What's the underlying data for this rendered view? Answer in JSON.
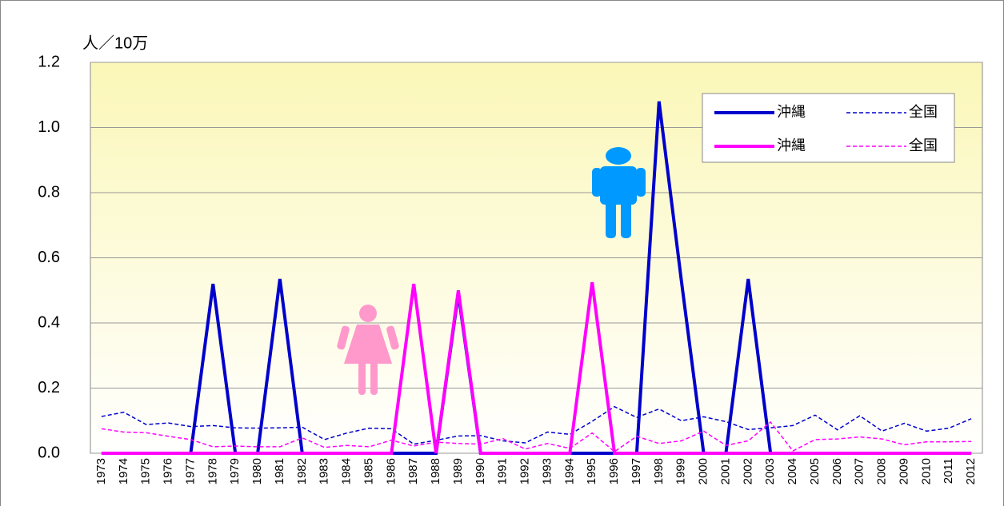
{
  "chart_data": {
    "type": "line",
    "y_label": "人／10万",
    "categories": [
      "1973",
      "1974",
      "1975",
      "1976",
      "1977",
      "1978",
      "1979",
      "1980",
      "1981",
      "1982",
      "1983",
      "1984",
      "1985",
      "1986",
      "1987",
      "1988",
      "1989",
      "1990",
      "1991",
      "1992",
      "1993",
      "1994",
      "1995",
      "1996",
      "1997",
      "1998",
      "1999",
      "2000",
      "2001",
      "2002",
      "2003",
      "2004",
      "2005",
      "2006",
      "2007",
      "2008",
      "2009",
      "2010",
      "2011",
      "2012"
    ],
    "ylim": [
      0,
      1.2
    ],
    "yticks": [
      {
        "value": 0,
        "label": "0.0"
      },
      {
        "value": 0.2,
        "label": "0.2"
      },
      {
        "value": 0.4,
        "label": "0.4"
      },
      {
        "value": 0.6,
        "label": "0.6"
      },
      {
        "value": 0.8,
        "label": "0.8"
      },
      {
        "value": 1.0,
        "label": "1.0"
      },
      {
        "value": 1.2,
        "label": "1.2"
      }
    ],
    "grid": true,
    "series": [
      {
        "name": "沖縄",
        "color": "#0000cc",
        "dashed": false,
        "values": [
          0,
          0,
          0,
          0,
          0,
          0.52,
          0,
          0,
          0.535,
          0,
          0,
          0,
          0,
          0,
          0,
          0,
          0.49,
          0,
          0,
          0,
          0,
          0,
          0,
          0,
          0,
          1.08,
          0.53,
          0,
          0,
          0.535,
          0,
          0,
          0,
          0,
          0,
          0,
          0,
          0,
          0,
          0
        ]
      },
      {
        "name": "全国",
        "color": "#0000cc",
        "dashed": true,
        "values": [
          0.113,
          0.126,
          0.088,
          0.093,
          0.082,
          0.085,
          0.078,
          0.077,
          0.078,
          0.08,
          0.042,
          0.062,
          0.077,
          0.075,
          0.028,
          0.04,
          0.053,
          0.054,
          0.038,
          0.032,
          0.065,
          0.058,
          0.098,
          0.143,
          0.11,
          0.136,
          0.1,
          0.112,
          0.097,
          0.073,
          0.078,
          0.085,
          0.117,
          0.072,
          0.115,
          0.068,
          0.092,
          0.068,
          0.077,
          0.106
        ]
      },
      {
        "name": "沖縄",
        "color": "#ff00ff",
        "dashed": false,
        "values": [
          0,
          0,
          0,
          0,
          0,
          0,
          0,
          0,
          0,
          0,
          0,
          0,
          0,
          0,
          0.52,
          0,
          0.5,
          0,
          0,
          0,
          0,
          0,
          0.525,
          0,
          0,
          0,
          0,
          0,
          0,
          0,
          0,
          0,
          0,
          0,
          0,
          0,
          0,
          0,
          0,
          0
        ]
      },
      {
        "name": "全国",
        "color": "#ff00ff",
        "dashed": true,
        "values": [
          0.075,
          0.065,
          0.063,
          0.052,
          0.042,
          0.02,
          0.022,
          0.02,
          0.02,
          0.047,
          0.018,
          0.024,
          0.02,
          0.04,
          0.022,
          0.034,
          0.03,
          0.028,
          0.045,
          0.013,
          0.03,
          0.015,
          0.062,
          0.005,
          0.052,
          0.03,
          0.038,
          0.068,
          0.024,
          0.038,
          0.096,
          0.007,
          0.042,
          0.044,
          0.05,
          0.044,
          0.026,
          0.035,
          0.035,
          0.036
        ]
      }
    ]
  }
}
